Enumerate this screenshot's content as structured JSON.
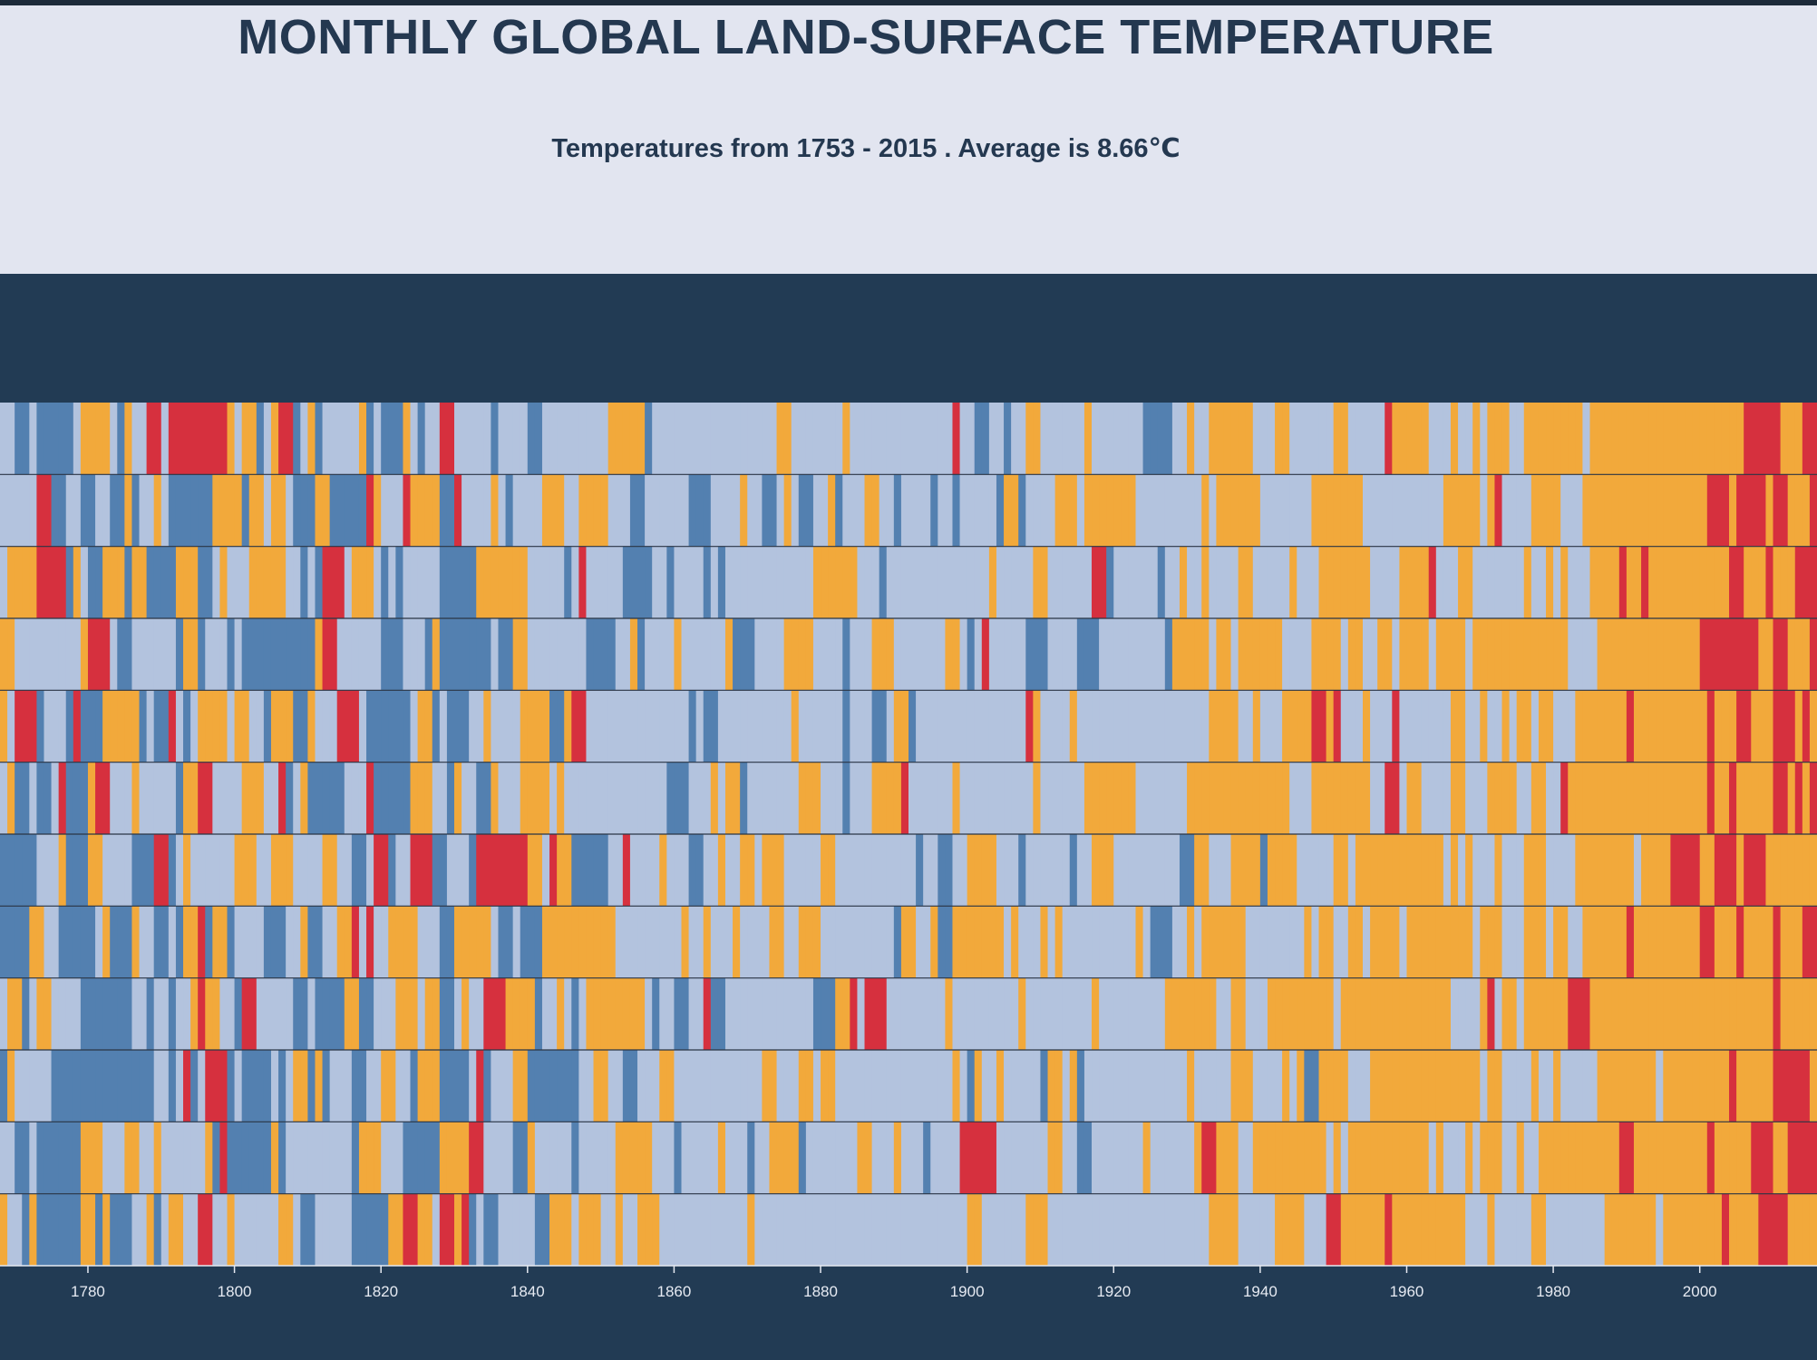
{
  "header": {
    "title": "MONTHLY GLOBAL LAND-SURFACE TEMPERATURE",
    "subtitle": "Temperatures from 1753 - 2015 . Average is 8.66℃"
  },
  "colors": {
    "header_bg": "#e2e5f0",
    "panel_bg": "#223b54",
    "text": "#243850",
    "tick_text": "#e6eaf2",
    "scale": [
      "#5380b0",
      "#b3c3de",
      "#f2a93b",
      "#d6303e"
    ]
  },
  "chart_data": {
    "type": "heatmap",
    "x_range": [
      1753,
      2015
    ],
    "xlim": [
      1768,
      2015
    ],
    "y_rows": 12,
    "base_temperature": 8.66,
    "x_ticks": [
      1780,
      1800,
      1820,
      1840,
      1860,
      1880,
      1900,
      1920,
      1940,
      1960,
      1980,
      2000
    ],
    "legend": "none",
    "grid": false
  }
}
